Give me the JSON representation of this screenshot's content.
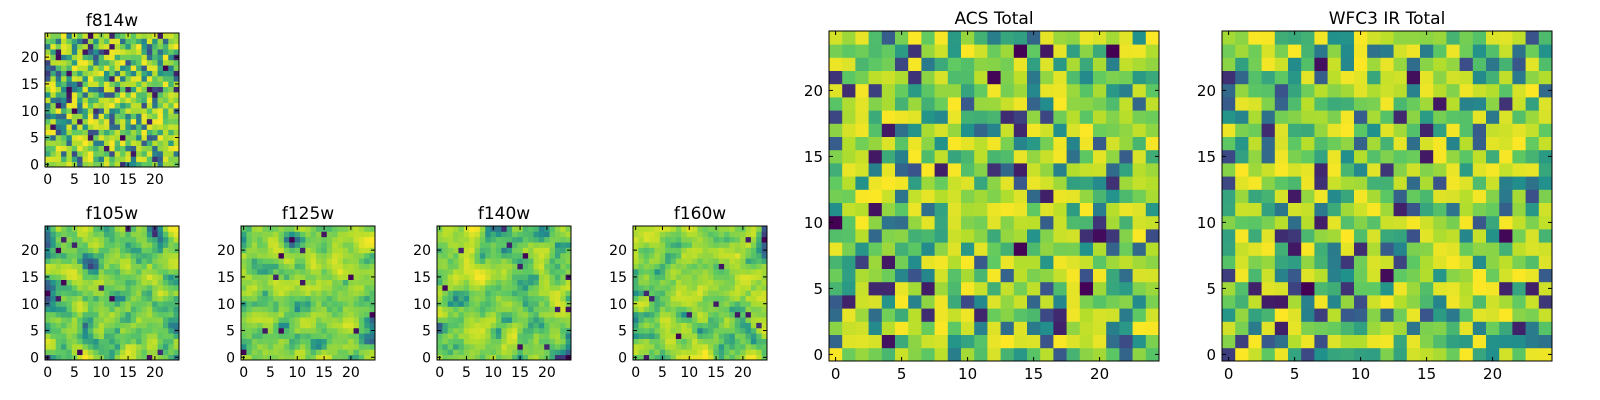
{
  "colormap": [
    "#440154",
    "#3b528b",
    "#21918c",
    "#5ec962",
    "#b5de2b",
    "#fde725"
  ],
  "chart_data": [
    {
      "type": "heatmap",
      "title": "f814w",
      "grid_size": 25,
      "seed": 11,
      "smooth": false,
      "xticks": [
        0,
        5,
        10,
        15,
        20
      ],
      "yticks": [
        0,
        5,
        10,
        15,
        20
      ],
      "xlim": [
        -0.5,
        24.5
      ],
      "ylim": [
        -0.5,
        24.5
      ],
      "grid": false
    },
    {
      "type": "heatmap",
      "title": "f105w",
      "grid_size": 25,
      "seed": 23,
      "smooth": true,
      "xticks": [
        0,
        5,
        10,
        15,
        20
      ],
      "yticks": [
        0,
        5,
        10,
        15,
        20
      ],
      "xlim": [
        -0.5,
        24.5
      ],
      "ylim": [
        -0.5,
        24.5
      ],
      "grid": false
    },
    {
      "type": "heatmap",
      "title": "f125w",
      "grid_size": 25,
      "seed": 37,
      "smooth": true,
      "xticks": [
        0,
        5,
        10,
        15,
        20
      ],
      "yticks": [
        0,
        5,
        10,
        15,
        20
      ],
      "xlim": [
        -0.5,
        24.5
      ],
      "ylim": [
        -0.5,
        24.5
      ],
      "grid": false
    },
    {
      "type": "heatmap",
      "title": "f140w",
      "grid_size": 25,
      "seed": 41,
      "smooth": true,
      "xticks": [
        0,
        5,
        10,
        15,
        20
      ],
      "yticks": [
        0,
        5,
        10,
        15,
        20
      ],
      "xlim": [
        -0.5,
        24.5
      ],
      "ylim": [
        -0.5,
        24.5
      ],
      "grid": false
    },
    {
      "type": "heatmap",
      "title": "f160w",
      "grid_size": 25,
      "seed": 53,
      "smooth": true,
      "xticks": [
        0,
        5,
        10,
        15,
        20
      ],
      "yticks": [
        0,
        5,
        10,
        15,
        20
      ],
      "xlim": [
        -0.5,
        24.5
      ],
      "ylim": [
        -0.5,
        24.5
      ],
      "grid": false
    },
    {
      "type": "heatmap",
      "title": "ACS Total",
      "grid_size": 25,
      "seed": 67,
      "smooth": false,
      "xticks": [
        0,
        5,
        10,
        15,
        20
      ],
      "yticks": [
        0,
        5,
        10,
        15,
        20
      ],
      "xlim": [
        -0.5,
        24.5
      ],
      "ylim": [
        -0.5,
        24.5
      ],
      "grid": false
    },
    {
      "type": "heatmap",
      "title": "WFC3 IR Total",
      "grid_size": 25,
      "seed": 79,
      "smooth": false,
      "xticks": [
        0,
        5,
        10,
        15,
        20
      ],
      "yticks": [
        0,
        5,
        10,
        15,
        20
      ],
      "xlim": [
        -0.5,
        24.5
      ],
      "ylim": [
        -0.5,
        24.5
      ],
      "grid": false
    }
  ]
}
